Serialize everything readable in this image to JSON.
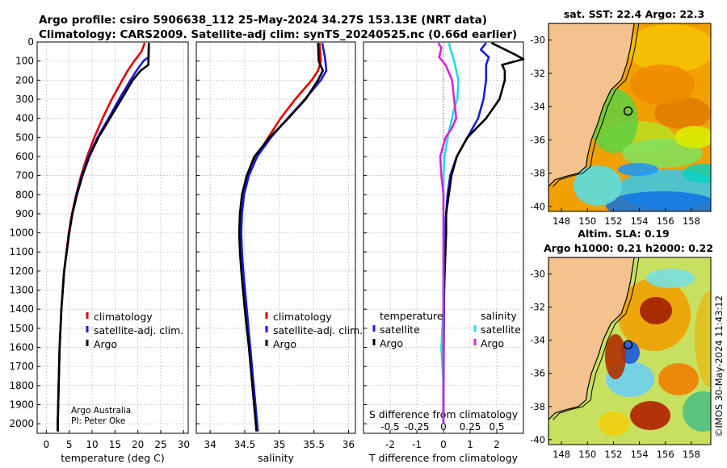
{
  "header": {
    "line1": "Argo profile: csiro 5906638_112 25-May-2024 34.27S 153.13E (NRT data)",
    "line2": "Climatology: CARS2009. Satellite-adj clim: synTS_20240525.nc (0.66d earlier)"
  },
  "credits": {
    "org": "Argo Australia",
    "pi": "PI: Peter Oke"
  },
  "watermark": "©IMOS 30-May-2024 11:43:12",
  "colors": {
    "climatology": "#e00000",
    "satellite": "#1a1add",
    "argo": "#000000",
    "sat_s": "#22dddd",
    "argo_s": "#dd22dd",
    "land": "#f5c28f"
  },
  "chart_data": [
    {
      "type": "line",
      "id": "temperature",
      "xlabel": "temperature (deg C)",
      "ylabel": "",
      "xlim": [
        -2,
        31
      ],
      "ylim": [
        0,
        2050
      ],
      "xticks": [
        0,
        5,
        10,
        15,
        20,
        25,
        30
      ],
      "yticks": [
        0,
        100,
        200,
        300,
        400,
        500,
        600,
        700,
        800,
        900,
        1000,
        1100,
        1200,
        1300,
        1400,
        1500,
        1600,
        1700,
        1800,
        1900,
        2000
      ],
      "legend": [
        "climatology",
        "satellite-adj. clim.",
        "Argo"
      ],
      "series": [
        {
          "name": "climatology",
          "depth": [
            5,
            50,
            100,
            150,
            200,
            300,
            400,
            500,
            600,
            700,
            800,
            900,
            1000,
            1200,
            1400,
            1600,
            1800,
            2000,
            2040
          ],
          "values": [
            21.5,
            20.8,
            19.2,
            17.8,
            16.6,
            14.3,
            12.3,
            10.5,
            8.9,
            7.6,
            6.5,
            5.6,
            4.9,
            3.9,
            3.3,
            2.9,
            2.7,
            2.5,
            2.5
          ]
        },
        {
          "name": "satellite-adj. clim.",
          "depth": [
            5,
            80,
            100,
            150,
            200,
            300,
            400,
            500,
            600,
            700,
            800,
            900,
            1000,
            1200,
            1400,
            1600,
            1800,
            2000,
            2040
          ],
          "values": [
            22.4,
            22.3,
            21.2,
            19.7,
            18.4,
            15.9,
            13.6,
            11.2,
            9.2,
            7.8,
            6.6,
            5.7,
            5.0,
            3.9,
            3.3,
            2.9,
            2.7,
            2.5,
            2.5
          ]
        },
        {
          "name": "Argo",
          "depth": [
            5,
            120,
            150,
            200,
            300,
            400,
            500,
            600,
            700,
            800,
            900,
            1000,
            1200,
            1400,
            1600,
            1800,
            2000,
            2040
          ],
          "values": [
            22.4,
            22.3,
            20.6,
            18.9,
            16.4,
            13.9,
            11.4,
            9.4,
            7.9,
            6.7,
            5.7,
            5.0,
            3.9,
            3.3,
            2.9,
            2.7,
            2.5,
            2.5
          ]
        }
      ]
    },
    {
      "type": "line",
      "id": "salinity",
      "xlabel": "salinity",
      "ylabel": "",
      "xlim": [
        33.8,
        36.1
      ],
      "ylim": [
        0,
        2050
      ],
      "xticks": [
        34,
        34.5,
        35,
        35.5,
        36
      ],
      "xticklabels": [
        "34",
        "34.5",
        "35",
        "35.5",
        "36"
      ],
      "legend": [
        "climatology",
        "satellite-adj. clim.",
        "Argo"
      ],
      "series": [
        {
          "name": "climatology",
          "depth": [
            5,
            100,
            150,
            200,
            300,
            400,
            500,
            600,
            700,
            800,
            900,
            1000,
            1100,
            1200,
            1400,
            1600,
            1800,
            2000,
            2040
          ],
          "values": [
            35.58,
            35.6,
            35.56,
            35.47,
            35.23,
            35.02,
            34.84,
            34.67,
            34.55,
            34.48,
            34.45,
            34.44,
            34.45,
            34.47,
            34.52,
            34.57,
            34.62,
            34.67,
            34.68
          ]
        },
        {
          "name": "satellite-adj. clim.",
          "depth": [
            5,
            80,
            150,
            200,
            300,
            400,
            500,
            600,
            700,
            800,
            900,
            1000,
            1100,
            1200,
            1400,
            1600,
            1800,
            2000,
            2040
          ],
          "values": [
            35.62,
            35.66,
            35.68,
            35.6,
            35.37,
            35.12,
            34.88,
            34.68,
            34.56,
            34.49,
            34.46,
            34.45,
            34.46,
            34.48,
            34.53,
            34.58,
            34.63,
            34.68,
            34.69
          ]
        },
        {
          "name": "Argo",
          "depth": [
            5,
            100,
            150,
            200,
            300,
            400,
            500,
            600,
            700,
            800,
            900,
            1000,
            1100,
            1200,
            1400,
            1600,
            1800,
            2000,
            2040
          ],
          "values": [
            35.56,
            35.57,
            35.63,
            35.56,
            35.38,
            35.13,
            34.86,
            34.64,
            34.53,
            34.46,
            34.43,
            34.42,
            34.43,
            34.45,
            34.5,
            34.56,
            34.61,
            34.66,
            34.67
          ]
        }
      ]
    },
    {
      "type": "line",
      "id": "difference",
      "xlabel": "T difference from climatology",
      "xlabel_top": "S difference from climatology",
      "xlim": [
        -3,
        3
      ],
      "ylim": [
        0,
        2050
      ],
      "xticks": [
        -2,
        -1,
        0,
        1,
        2
      ],
      "xticklabels": [
        "-2",
        "-1",
        "0",
        "1",
        "2"
      ],
      "s_ticks": [
        -0.5,
        -0.25,
        0,
        0.25,
        0.5
      ],
      "s_ticklabels": [
        "-0.5",
        "-0.25",
        "0",
        "0.25",
        "0.5"
      ],
      "legend_temperature_title": "temperature",
      "legend_salinity_title": "salinity",
      "legend_temperature": [
        "satellite",
        "Argo"
      ],
      "legend_salinity": [
        "satellite",
        "Argo"
      ],
      "series": [
        {
          "name": "T satellite",
          "depth": [
            5,
            40,
            80,
            120,
            200,
            300,
            400,
            500,
            600,
            700,
            800,
            900,
            1000,
            1200,
            1400,
            1600,
            1800,
            2000
          ],
          "values": [
            1.6,
            1.4,
            1.7,
            1.6,
            1.6,
            1.5,
            1.3,
            0.9,
            0.5,
            0.25,
            0.15,
            0.1,
            0.05,
            0.03,
            0.02,
            0.01,
            0,
            0
          ]
        },
        {
          "name": "T Argo",
          "depth": [
            5,
            60,
            90,
            120,
            150,
            200,
            300,
            400,
            500,
            600,
            700,
            800,
            900,
            1000,
            1200,
            1400,
            1600,
            1800,
            2000
          ],
          "values": [
            1.8,
            2.6,
            3.0,
            2.2,
            2.3,
            2.3,
            2.1,
            1.6,
            0.9,
            0.5,
            0.3,
            0.2,
            0.1,
            0.1,
            0.05,
            0.0,
            0.0,
            0.0,
            0.0
          ]
        },
        {
          "name": "S satellite",
          "depth": [
            5,
            100,
            200,
            300,
            350,
            400,
            500,
            600,
            700,
            800,
            900,
            1000,
            1200,
            1400,
            1600,
            1800,
            2000
          ],
          "values": [
            0.05,
            0.1,
            0.14,
            0.13,
            0.1,
            0.08,
            0.04,
            0.01,
            0.0,
            0.0,
            0.0,
            0.0,
            0.0,
            0.0,
            -0.02,
            0.0,
            0.0
          ]
        },
        {
          "name": "S Argo",
          "depth": [
            5,
            30,
            80,
            120,
            200,
            300,
            400,
            450,
            500,
            600,
            700,
            800,
            900,
            1000,
            1200,
            1400,
            1600,
            1800,
            2000
          ],
          "values": [
            -0.05,
            -0.02,
            -0.04,
            0.02,
            0.08,
            0.1,
            0.12,
            0.08,
            0.02,
            -0.03,
            -0.02,
            0.0,
            0.0,
            0.0,
            0.0,
            0.0,
            0.0,
            0.0,
            0.0
          ]
        }
      ]
    },
    {
      "type": "heatmap",
      "id": "sst-map",
      "title": "sat. SST: 22.4  Argo: 22.3",
      "xlim": [
        147,
        159.5
      ],
      "ylim": [
        -40.3,
        -29
      ],
      "xticks": [
        148,
        150,
        152,
        154,
        156,
        158
      ],
      "yticks": [
        -30,
        -32,
        -34,
        -36,
        -38,
        -40
      ],
      "argo_lon": 153.13,
      "argo_lat": -34.27
    },
    {
      "type": "heatmap",
      "id": "sla-map",
      "title": "Altim. SLA: 0.19",
      "subtitle": "Argo h1000: 0.21 h2000: 0.22",
      "xlim": [
        147,
        159.5
      ],
      "ylim": [
        -40.3,
        -29
      ],
      "xticks": [
        148,
        150,
        152,
        154,
        156,
        158
      ],
      "yticks": [
        -30,
        -32,
        -34,
        -36,
        -38,
        -40
      ],
      "argo_lon": 153.13,
      "argo_lat": -34.27
    }
  ]
}
